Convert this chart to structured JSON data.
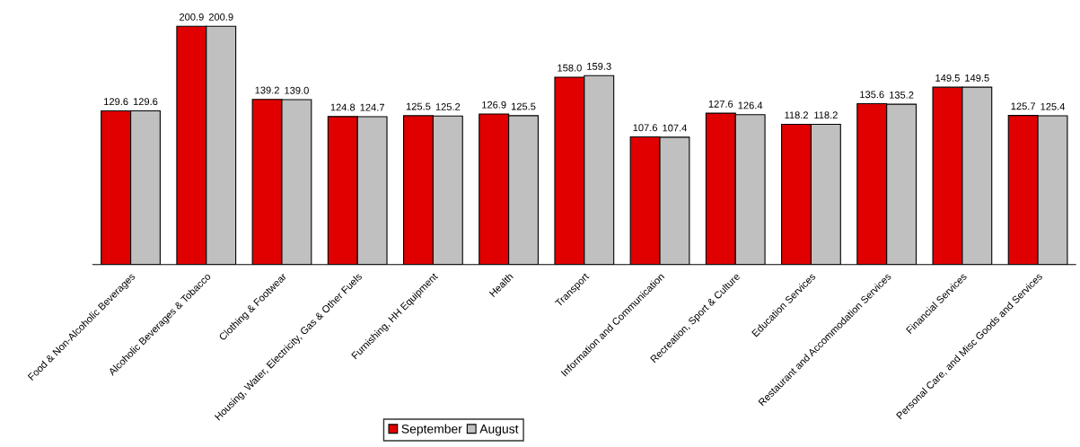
{
  "chart_data": {
    "type": "bar",
    "categories": [
      "Food & Non-Alcoholic Beverages",
      "Alcoholic Beverages & Tobacco",
      "Clothing & Footwear",
      "Housing, Water, Electricity, Gas & Other Fuels",
      "Furnishing, HH Equipment",
      "Health",
      "Transport",
      "Information and Communication",
      "Recreation, Sport & Culture",
      "Education Services",
      "Restaurant and Accommodation Services",
      "Financial Services",
      "Personal Care, and Misc Goods and Services"
    ],
    "series": [
      {
        "name": "September",
        "color": "#e00000",
        "values": [
          129.6,
          200.9,
          139.2,
          124.8,
          125.5,
          126.9,
          158.0,
          107.6,
          127.6,
          118.2,
          135.6,
          149.5,
          125.7
        ],
        "value_labels": [
          "129.6",
          "200.9",
          "139.2",
          "124.8",
          "125.5",
          "126.9",
          "158.0",
          "107.6",
          "127.6",
          "118.2",
          "135.6",
          "149.5",
          "125.7"
        ]
      },
      {
        "name": "August",
        "color": "#c0c0c0",
        "values": [
          129.6,
          200.9,
          139.0,
          124.7,
          125.2,
          125.5,
          159.3,
          107.4,
          126.4,
          118.2,
          135.2,
          149.5,
          125.4
        ],
        "value_labels": [
          "129.6",
          "200.9",
          "139.0",
          "124.7",
          "125.2",
          "125.5",
          "159.3",
          "107.4",
          "126.4",
          "118.2",
          "135.2",
          "149.5",
          "125.4"
        ]
      }
    ],
    "legend": "bottom",
    "grid": false,
    "tick_labels": "x"
  }
}
